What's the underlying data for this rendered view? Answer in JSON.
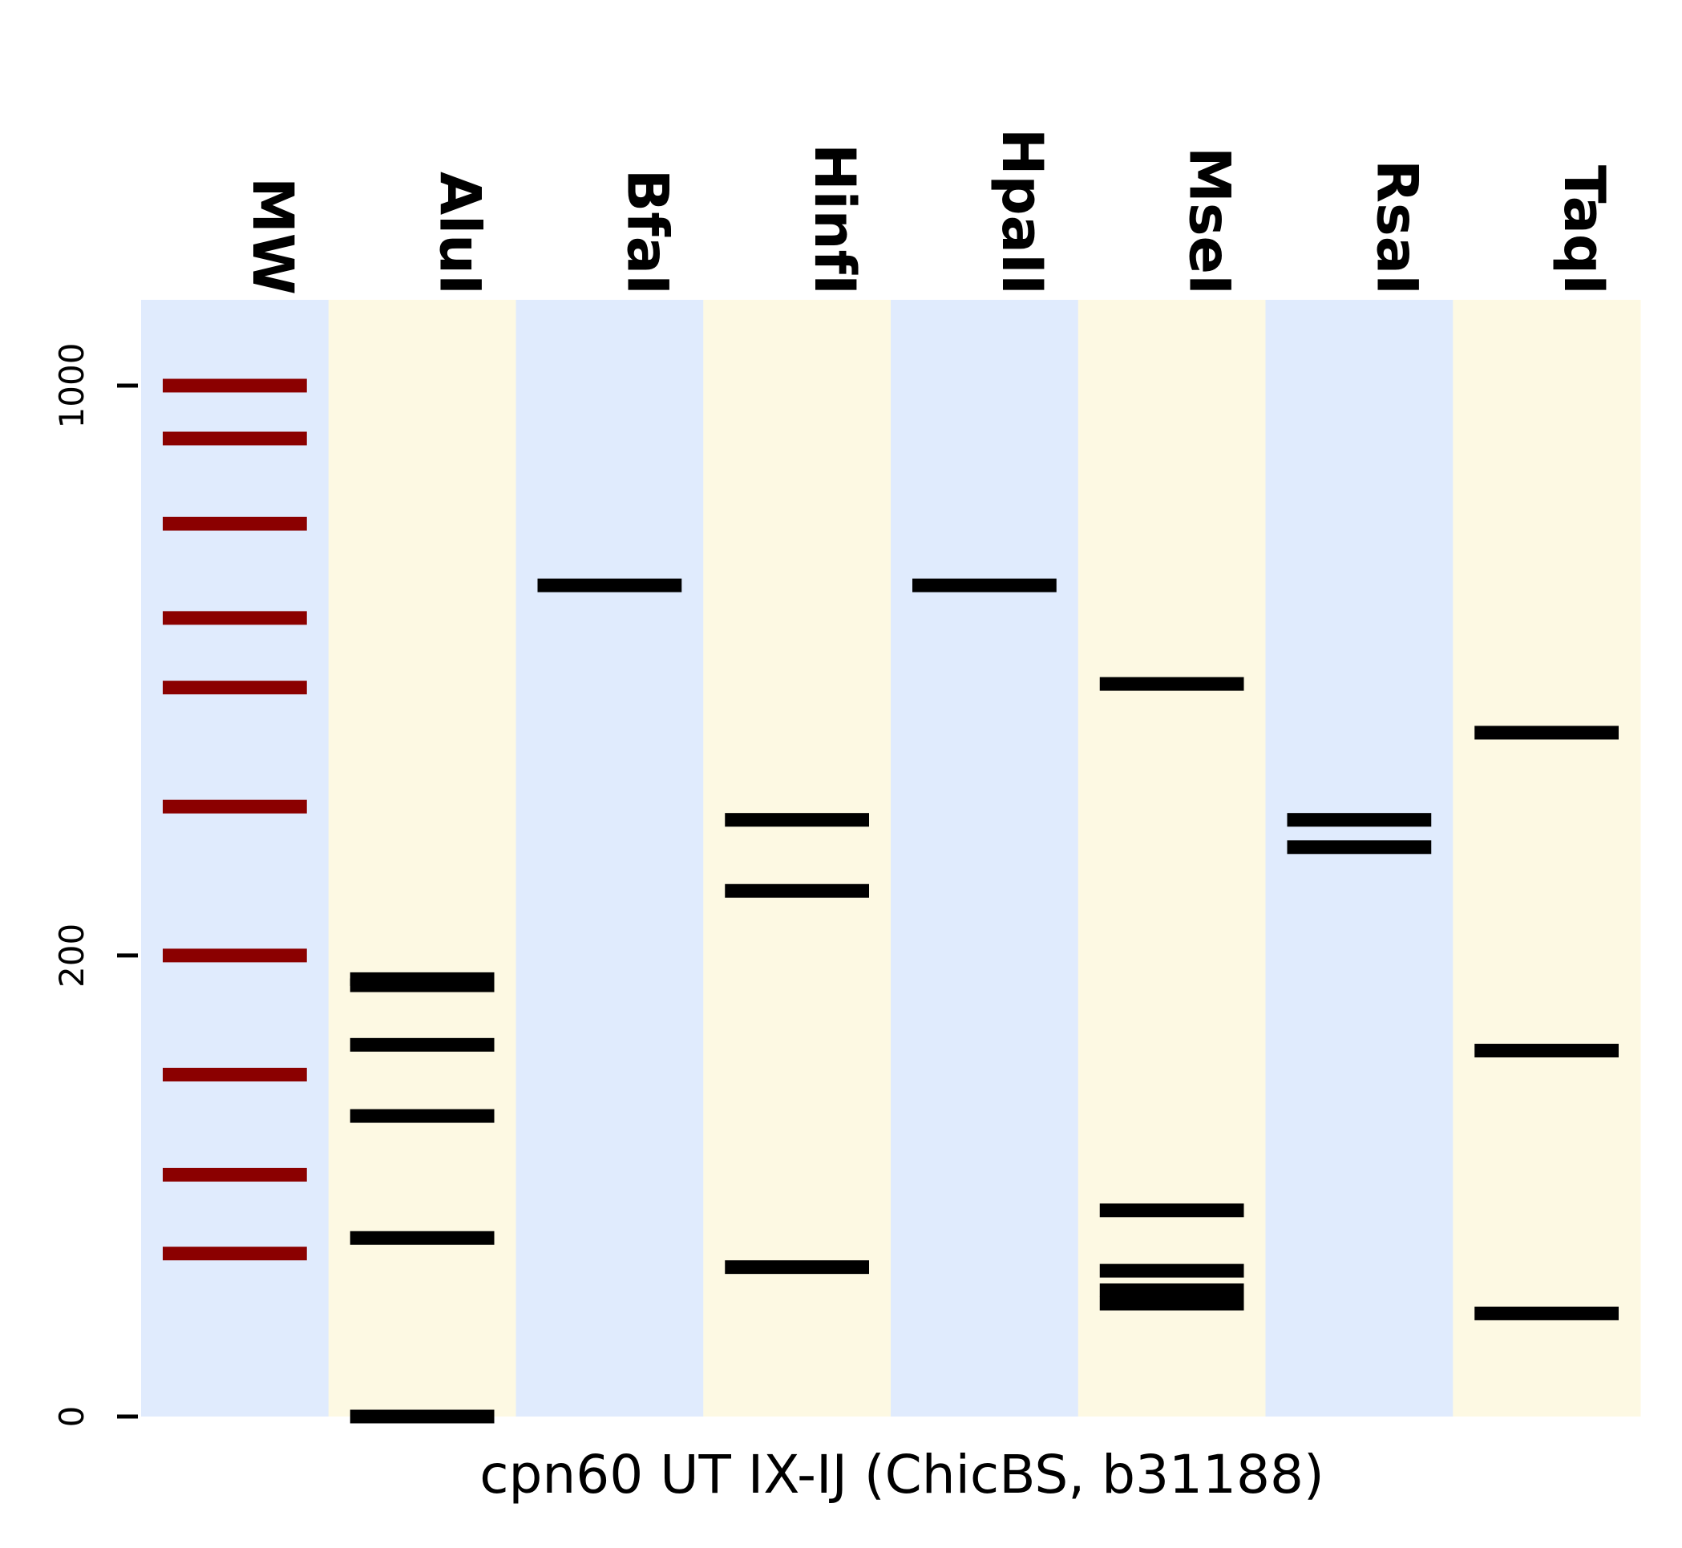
{
  "chart_data": {
    "type": "gel",
    "xlabel": "cpn60 UT IX-IJ (ChicBS, b31188)",
    "ylabel": "",
    "y_ticks": [
      {
        "value": 0,
        "label": "0"
      },
      {
        "value": 200,
        "label": "200"
      },
      {
        "value": 1000,
        "label": "1000"
      }
    ],
    "lane_colors": [
      "#e0ebfd",
      "#fdf9e3"
    ],
    "marker_color": "#8b0000",
    "band_color": "#000000",
    "lanes": [
      {
        "name": "MW",
        "marker": true,
        "bands": [
          1000,
          900,
          750,
          600,
          500,
          350,
          200,
          110,
          55,
          25
        ]
      },
      {
        "name": "AluI",
        "marker": false,
        "bands": [
          180,
          175,
          130,
          85,
          30,
          0
        ]
      },
      {
        "name": "BfaI",
        "marker": false,
        "bands": [
          650
        ]
      },
      {
        "name": "HinfI",
        "marker": false,
        "bands": [
          335,
          260,
          21
        ]
      },
      {
        "name": "HpaII",
        "marker": false,
        "bands": [
          650
        ]
      },
      {
        "name": "MseI",
        "marker": false,
        "bands": [
          505,
          40,
          20,
          15,
          12
        ]
      },
      {
        "name": "RsaI",
        "marker": false,
        "bands": [
          335,
          305
        ]
      },
      {
        "name": "TaqI",
        "marker": false,
        "bands": [
          440,
          126,
          10
        ]
      }
    ]
  }
}
